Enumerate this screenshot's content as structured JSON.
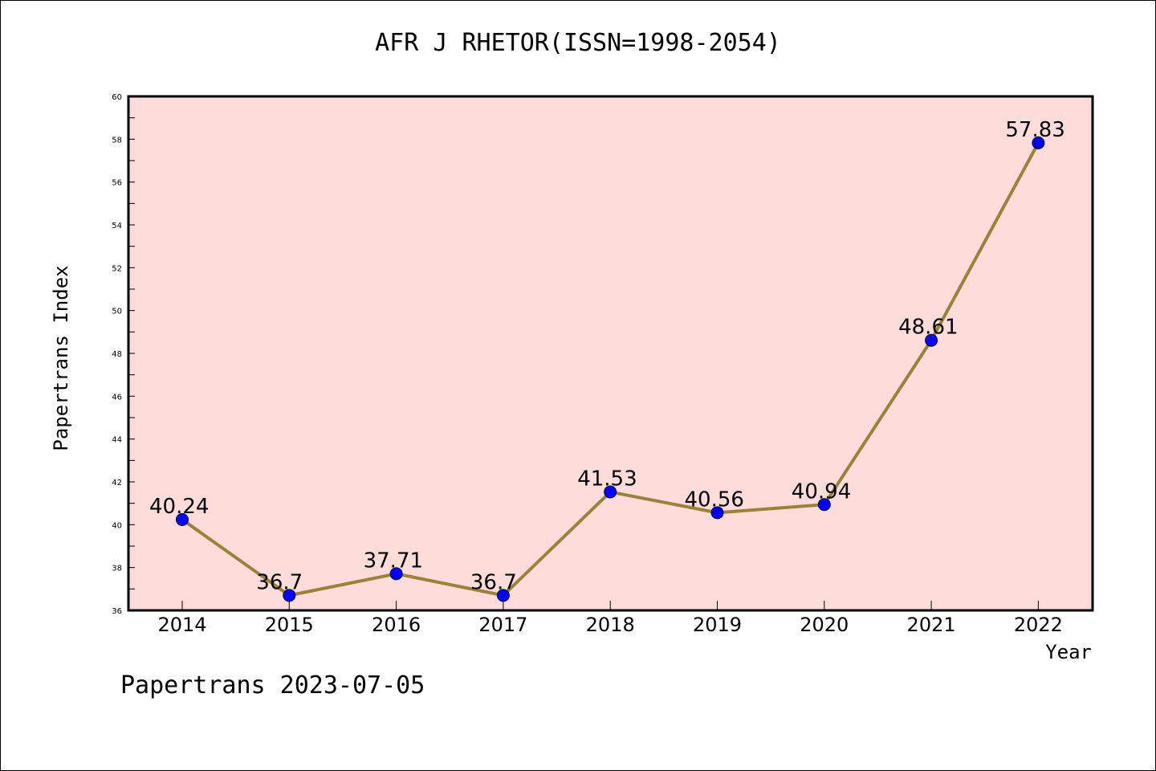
{
  "chart_data": {
    "type": "line",
    "title": "AFR J RHETOR(ISSN=1998-2054)",
    "xlabel": "Year",
    "ylabel": "Papertrans Index",
    "categories": [
      "2014",
      "2015",
      "2016",
      "2017",
      "2018",
      "2019",
      "2020",
      "2021",
      "2022"
    ],
    "values": [
      40.24,
      36.7,
      37.71,
      36.7,
      41.53,
      40.56,
      40.94,
      48.61,
      57.83
    ],
    "data_labels": [
      "40.24",
      "36.7",
      "37.71",
      "36.7",
      "41.53",
      "40.56",
      "40.94",
      "48.61",
      "57.83"
    ],
    "ylim": [
      36,
      60
    ],
    "yticks": [
      36,
      38,
      40,
      42,
      44,
      46,
      48,
      50,
      52,
      54,
      56,
      58,
      60
    ],
    "grid": false,
    "colors": {
      "plot_background": "#fddcda",
      "line": "#9a8239",
      "marker": "#0000ff",
      "axis": "#000000"
    }
  },
  "footer": "Papertrans 2023-07-05"
}
